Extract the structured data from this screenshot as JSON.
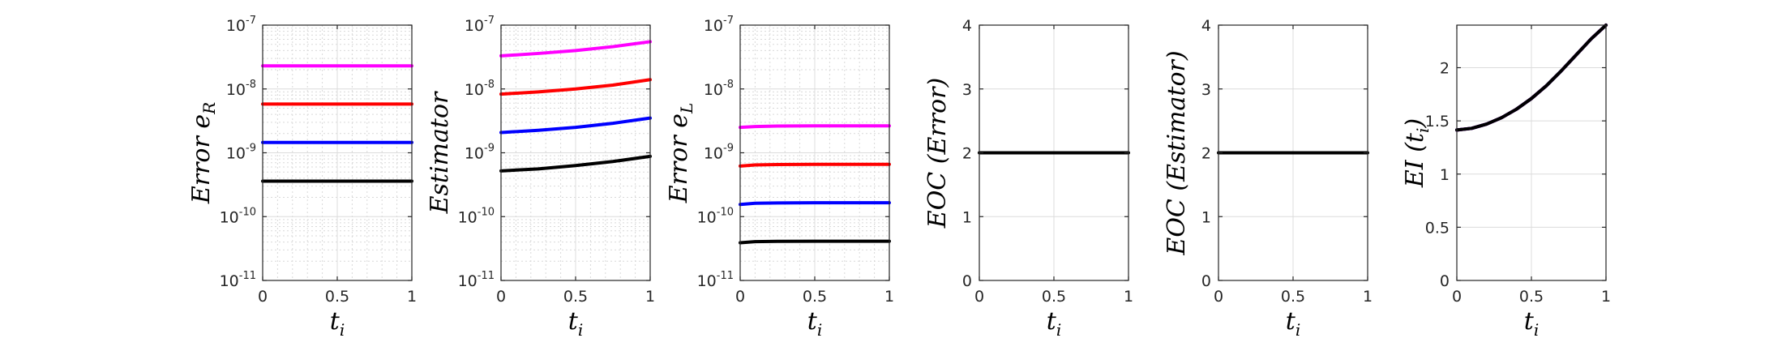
{
  "chart_data": [
    {
      "type": "line",
      "ylabel": "Error e_R",
      "ylabel_parts": {
        "main": "Error e",
        "sub": "R"
      },
      "xlabel": "t_i",
      "xlabel_parts": {
        "main": "t",
        "sub": "i"
      },
      "yscale": "log",
      "xlim": [
        0,
        1
      ],
      "ylim": [
        1e-11,
        1e-07
      ],
      "xticks": [
        "0",
        "0.5",
        "1"
      ],
      "yticks": [
        {
          "base": "10",
          "exp": "-7",
          "value": 1e-07
        },
        {
          "base": "10",
          "exp": "-8",
          "value": 1e-08
        },
        {
          "base": "10",
          "exp": "-9",
          "value": 1e-09
        },
        {
          "base": "10",
          "exp": "-10",
          "value": 1e-10
        },
        {
          "base": "10",
          "exp": "-11",
          "value": 1e-11
        }
      ],
      "grid": true,
      "series": [
        {
          "color": "#ff00ff",
          "x": [
            0,
            0.25,
            0.5,
            0.75,
            1
          ],
          "values": [
            2.3e-08,
            2.3e-08,
            2.3e-08,
            2.3e-08,
            2.3e-08
          ]
        },
        {
          "color": "#ff0000",
          "x": [
            0,
            0.25,
            0.5,
            0.75,
            1
          ],
          "values": [
            5.8e-09,
            5.8e-09,
            5.8e-09,
            5.8e-09,
            5.8e-09
          ]
        },
        {
          "color": "#0000ff",
          "x": [
            0,
            0.25,
            0.5,
            0.75,
            1
          ],
          "values": [
            1.45e-09,
            1.45e-09,
            1.45e-09,
            1.45e-09,
            1.45e-09
          ]
        },
        {
          "color": "#000000",
          "x": [
            0,
            0.25,
            0.5,
            0.75,
            1
          ],
          "values": [
            3.6e-10,
            3.6e-10,
            3.6e-10,
            3.6e-10,
            3.6e-10
          ]
        }
      ]
    },
    {
      "type": "line",
      "ylabel": "Estimator",
      "ylabel_parts": {
        "main": "Estimator",
        "sub": ""
      },
      "xlabel": "t_i",
      "xlabel_parts": {
        "main": "t",
        "sub": "i"
      },
      "yscale": "log",
      "xlim": [
        0,
        1
      ],
      "ylim": [
        1e-11,
        1e-07
      ],
      "xticks": [
        "0",
        "0.5",
        "1"
      ],
      "yticks": [
        {
          "base": "10",
          "exp": "-7",
          "value": 1e-07
        },
        {
          "base": "10",
          "exp": "-8",
          "value": 1e-08
        },
        {
          "base": "10",
          "exp": "-9",
          "value": 1e-09
        },
        {
          "base": "10",
          "exp": "-10",
          "value": 1e-10
        },
        {
          "base": "10",
          "exp": "-11",
          "value": 1e-11
        }
      ],
      "grid": true,
      "series": [
        {
          "color": "#ff00ff",
          "x": [
            0,
            0.25,
            0.5,
            0.75,
            1
          ],
          "values": [
            3.3e-08,
            3.6e-08,
            4e-08,
            4.6e-08,
            5.5e-08
          ]
        },
        {
          "color": "#ff0000",
          "x": [
            0,
            0.25,
            0.5,
            0.75,
            1
          ],
          "values": [
            8.3e-09,
            9e-09,
            1e-08,
            1.15e-08,
            1.4e-08
          ]
        },
        {
          "color": "#0000ff",
          "x": [
            0,
            0.25,
            0.5,
            0.75,
            1
          ],
          "values": [
            2.08e-09,
            2.25e-09,
            2.5e-09,
            2.9e-09,
            3.5e-09
          ]
        },
        {
          "color": "#000000",
          "x": [
            0,
            0.25,
            0.5,
            0.75,
            1
          ],
          "values": [
            5.2e-10,
            5.6e-10,
            6.3e-10,
            7.3e-10,
            8.8e-10
          ]
        }
      ]
    },
    {
      "type": "line",
      "ylabel": "Error e_L",
      "ylabel_parts": {
        "main": "Error e",
        "sub": "L"
      },
      "xlabel": "t_i",
      "xlabel_parts": {
        "main": "t",
        "sub": "i"
      },
      "yscale": "log",
      "xlim": [
        0,
        1
      ],
      "ylim": [
        1e-11,
        1e-07
      ],
      "xticks": [
        "0",
        "0.5",
        "1"
      ],
      "yticks": [
        {
          "base": "10",
          "exp": "-7",
          "value": 1e-07
        },
        {
          "base": "10",
          "exp": "-8",
          "value": 1e-08
        },
        {
          "base": "10",
          "exp": "-9",
          "value": 1e-09
        },
        {
          "base": "10",
          "exp": "-10",
          "value": 1e-10
        },
        {
          "base": "10",
          "exp": "-11",
          "value": 1e-11
        }
      ],
      "grid": true,
      "series": [
        {
          "color": "#ff00ff",
          "x": [
            0,
            0.1,
            0.25,
            0.5,
            0.75,
            1
          ],
          "values": [
            2.5e-09,
            2.58e-09,
            2.62e-09,
            2.64e-09,
            2.64e-09,
            2.64e-09
          ]
        },
        {
          "color": "#ff0000",
          "x": [
            0,
            0.1,
            0.25,
            0.5,
            0.75,
            1
          ],
          "values": [
            6.2e-10,
            6.45e-10,
            6.55e-10,
            6.6e-10,
            6.6e-10,
            6.6e-10
          ]
        },
        {
          "color": "#0000ff",
          "x": [
            0,
            0.1,
            0.25,
            0.5,
            0.75,
            1
          ],
          "values": [
            1.55e-10,
            1.62e-10,
            1.64e-10,
            1.65e-10,
            1.65e-10,
            1.65e-10
          ]
        },
        {
          "color": "#000000",
          "x": [
            0,
            0.1,
            0.25,
            0.5,
            0.75,
            1
          ],
          "values": [
            3.9e-11,
            4.05e-11,
            4.1e-11,
            4.12e-11,
            4.12e-11,
            4.12e-11
          ]
        }
      ]
    },
    {
      "type": "line",
      "ylabel": "EOC (Error)",
      "ylabel_parts": {
        "main": "EOC (Error)",
        "sub": ""
      },
      "xlabel": "t_i",
      "xlabel_parts": {
        "main": "t",
        "sub": "i"
      },
      "yscale": "linear",
      "xlim": [
        0,
        1
      ],
      "ylim": [
        0,
        4
      ],
      "xticks": [
        "0",
        "0.5",
        "1"
      ],
      "yticks": [
        {
          "base": "0",
          "exp": "",
          "value": 0
        },
        {
          "base": "1",
          "exp": "",
          "value": 1
        },
        {
          "base": "2",
          "exp": "",
          "value": 2
        },
        {
          "base": "3",
          "exp": "",
          "value": 3
        },
        {
          "base": "4",
          "exp": "",
          "value": 4
        }
      ],
      "grid": true,
      "series": [
        {
          "color": "#000000",
          "x": [
            0,
            0.5,
            1
          ],
          "values": [
            2,
            2,
            2
          ]
        }
      ]
    },
    {
      "type": "line",
      "ylabel": "EOC (Estimator)",
      "ylabel_parts": {
        "main": "EOC (Estimator)",
        "sub": ""
      },
      "xlabel": "t_i",
      "xlabel_parts": {
        "main": "t",
        "sub": "i"
      },
      "yscale": "linear",
      "xlim": [
        0,
        1
      ],
      "ylim": [
        0,
        4
      ],
      "xticks": [
        "0",
        "0.5",
        "1"
      ],
      "yticks": [
        {
          "base": "0",
          "exp": "",
          "value": 0
        },
        {
          "base": "1",
          "exp": "",
          "value": 1
        },
        {
          "base": "2",
          "exp": "",
          "value": 2
        },
        {
          "base": "3",
          "exp": "",
          "value": 3
        },
        {
          "base": "4",
          "exp": "",
          "value": 4
        }
      ],
      "grid": true,
      "series": [
        {
          "color": "#000000",
          "x": [
            0,
            0.5,
            1
          ],
          "values": [
            2,
            2,
            2
          ]
        }
      ]
    },
    {
      "type": "line",
      "ylabel": "EI (t_i)",
      "ylabel_parts": {
        "main": "EI (t",
        "sub": "i",
        "tail": ")"
      },
      "xlabel": "t_i",
      "xlabel_parts": {
        "main": "t",
        "sub": "i"
      },
      "yscale": "linear",
      "xlim": [
        0,
        1
      ],
      "ylim": [
        0,
        2.4
      ],
      "xticks": [
        "0",
        "0.5",
        "1"
      ],
      "yticks": [
        {
          "base": "0",
          "exp": "",
          "value": 0
        },
        {
          "base": "0.5",
          "exp": "",
          "value": 0.5
        },
        {
          "base": "1",
          "exp": "",
          "value": 1
        },
        {
          "base": "1.5",
          "exp": "",
          "value": 1.5
        },
        {
          "base": "2",
          "exp": "",
          "value": 2
        }
      ],
      "grid": true,
      "series": [
        {
          "color": "#ff00ff",
          "x": [
            0,
            0.1,
            0.2,
            0.3,
            0.4,
            0.5,
            0.6,
            0.7,
            0.8,
            0.9,
            1
          ],
          "values": [
            1.414,
            1.43,
            1.47,
            1.53,
            1.61,
            1.71,
            1.83,
            1.97,
            2.12,
            2.27,
            2.4
          ]
        },
        {
          "color": "#ff0000",
          "x": [
            0,
            0.1,
            0.2,
            0.3,
            0.4,
            0.5,
            0.6,
            0.7,
            0.8,
            0.9,
            1
          ],
          "values": [
            1.414,
            1.43,
            1.47,
            1.53,
            1.61,
            1.71,
            1.83,
            1.97,
            2.12,
            2.27,
            2.4
          ]
        },
        {
          "color": "#0000ff",
          "x": [
            0,
            0.1,
            0.2,
            0.3,
            0.4,
            0.5,
            0.6,
            0.7,
            0.8,
            0.9,
            1
          ],
          "values": [
            1.414,
            1.43,
            1.47,
            1.53,
            1.61,
            1.71,
            1.83,
            1.97,
            2.12,
            2.27,
            2.4
          ]
        },
        {
          "color": "#000000",
          "x": [
            0,
            0.1,
            0.2,
            0.3,
            0.4,
            0.5,
            0.6,
            0.7,
            0.8,
            0.9,
            1
          ],
          "values": [
            1.414,
            1.43,
            1.47,
            1.53,
            1.61,
            1.71,
            1.83,
            1.97,
            2.12,
            2.27,
            2.4
          ]
        }
      ]
    }
  ]
}
